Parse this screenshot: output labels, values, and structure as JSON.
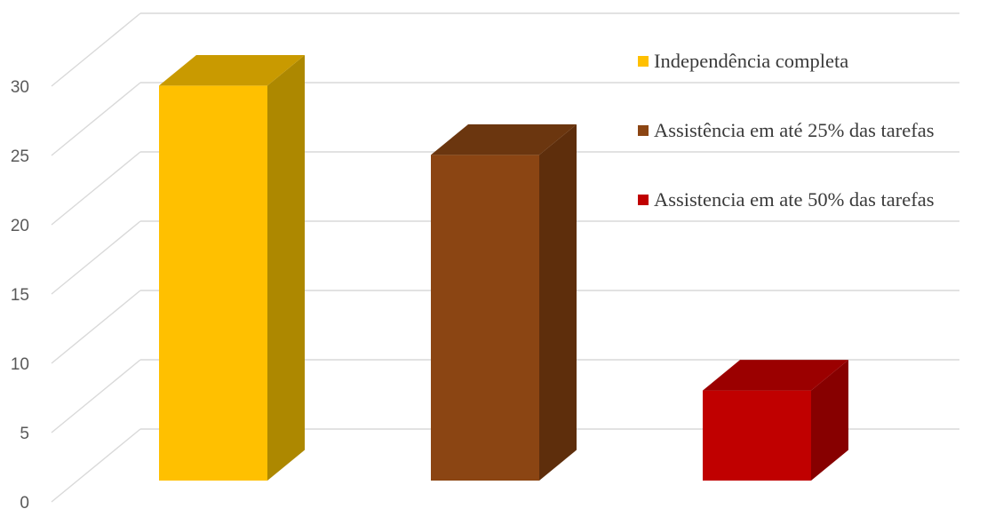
{
  "chart_data": {
    "type": "bar",
    "style": "3d-column",
    "title": "",
    "xlabel": "",
    "ylabel": "",
    "ylim": [
      0,
      35
    ],
    "yticks": [
      0,
      5,
      10,
      15,
      20,
      25,
      30
    ],
    "grid": true,
    "legend_position": "top-right",
    "series": [
      {
        "name": "Independência completa",
        "value": 28.5,
        "color": "#FFC000",
        "side_color": "#AD8800",
        "top_color": "#C99A00"
      },
      {
        "name": "Assistência em até 25% das tarefas",
        "value": 23.5,
        "color": "#8B4513",
        "side_color": "#5E2E0C",
        "top_color": "#6B360F"
      },
      {
        "name": "Assistencia em ate 50% das tarefas",
        "value": 6.5,
        "color": "#C00000",
        "side_color": "#870000",
        "top_color": "#9B0000"
      }
    ]
  }
}
